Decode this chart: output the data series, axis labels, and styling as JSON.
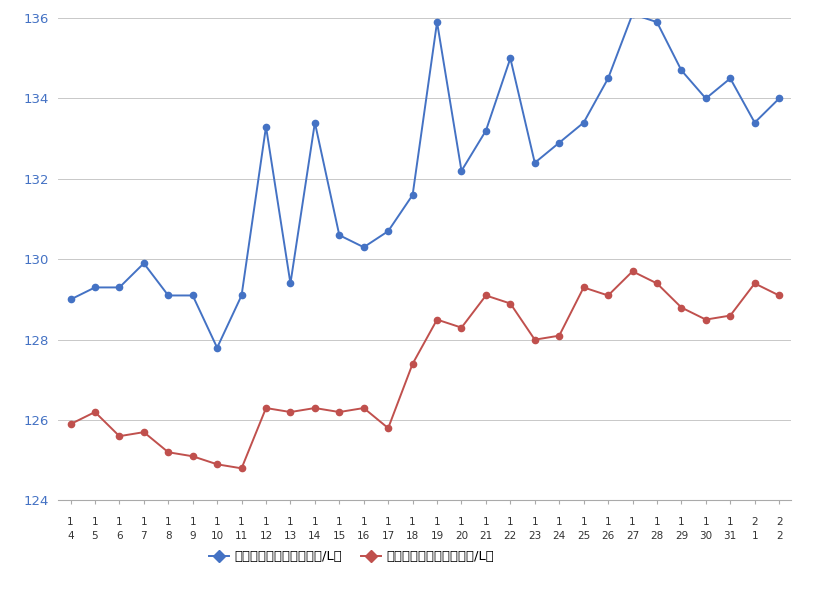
{
  "x_labels_row1": [
    "1",
    "1",
    "1",
    "1",
    "1",
    "1",
    "1",
    "1",
    "1",
    "1",
    "1",
    "1",
    "1",
    "1",
    "1",
    "1",
    "1",
    "1",
    "1",
    "1",
    "1",
    "1",
    "1",
    "1",
    "1",
    "1",
    "1",
    "1",
    "2",
    "2"
  ],
  "x_labels_row2": [
    "4",
    "5",
    "6",
    "7",
    "8",
    "9",
    "10",
    "11",
    "12",
    "13",
    "14",
    "15",
    "16",
    "17",
    "18",
    "19",
    "20",
    "21",
    "22",
    "23",
    "24",
    "25",
    "26",
    "27",
    "28",
    "29",
    "30",
    "31",
    "1",
    "2"
  ],
  "blue_values": [
    129.0,
    129.3,
    129.3,
    129.9,
    129.1,
    129.1,
    127.8,
    129.1,
    133.3,
    129.4,
    133.4,
    130.6,
    130.3,
    130.7,
    131.6,
    135.9,
    132.2,
    133.2,
    135.0,
    132.4,
    132.9,
    133.4,
    134.5,
    136.1,
    135.9,
    134.7,
    134.0,
    134.5,
    133.4,
    134.0
  ],
  "red_values": [
    125.9,
    126.2,
    125.6,
    125.7,
    125.2,
    125.1,
    124.9,
    124.8,
    126.3,
    126.2,
    126.3,
    126.2,
    126.3,
    125.8,
    127.4,
    128.5,
    128.3,
    129.1,
    128.9,
    128.0,
    128.1,
    129.3,
    129.1,
    129.7,
    129.4,
    128.8,
    128.5,
    128.6,
    129.4,
    129.1
  ],
  "ylim_min": 124,
  "ylim_max": 136,
  "yticks": [
    124,
    126,
    128,
    130,
    132,
    134,
    136
  ],
  "blue_color": "#4472C4",
  "red_color": "#C0504D",
  "bg_color": "#FFFFFF",
  "grid_color": "#C8C8C8",
  "tick_color": "#4472C4",
  "legend1": "レギュラー看板価格（円/L）",
  "legend2": "レギュラー実売価格（円/L）"
}
